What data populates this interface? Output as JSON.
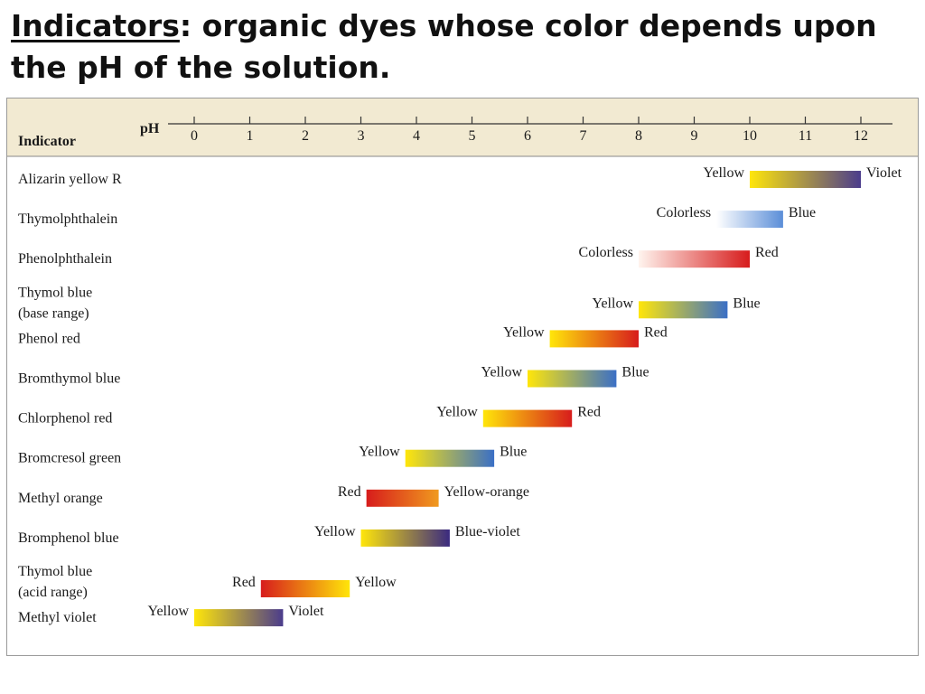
{
  "title": {
    "term": "Indicators",
    "rest": ": organic dyes whose color depends upon the pH of the solution."
  },
  "colors": {
    "header_background": "#f2ead2",
    "yellow": "#ffe60a",
    "violet": "#4b3c8c",
    "blue": "#3a6fc6",
    "red": "#d71c1c",
    "orange": "#f09a1e",
    "colorless": "#ffffff",
    "light_blue": "#5b8ed8"
  },
  "chart_data": {
    "type": "range",
    "title": "",
    "header_label": "Indicator",
    "axis_label": "pH",
    "xlim": [
      0,
      12
    ],
    "ticks": [
      0,
      1,
      2,
      3,
      4,
      5,
      6,
      7,
      8,
      9,
      10,
      11,
      12
    ],
    "indicators": [
      {
        "name": [
          "Alizarin yellow R"
        ],
        "low": 10.0,
        "high": 12.0,
        "low_color_label": "Yellow",
        "high_color_label": "Violet",
        "low_color": "#ffe60a",
        "high_color": "#4b3c8c"
      },
      {
        "name": [
          "Thymolphthalein"
        ],
        "low": 9.4,
        "high": 10.6,
        "low_color_label": "Colorless",
        "high_color_label": "Blue",
        "low_color": "#ffffff",
        "high_color": "#5b8ed8"
      },
      {
        "name": [
          "Phenolphthalein"
        ],
        "low": 8.0,
        "high": 10.0,
        "low_color_label": "Colorless",
        "high_color_label": "Red",
        "low_color": "#fff4ee",
        "high_color": "#d71c1c"
      },
      {
        "name": [
          "Thymol blue",
          "(base range)"
        ],
        "low": 8.0,
        "high": 9.6,
        "low_color_label": "Yellow",
        "high_color_label": "Blue",
        "low_color": "#ffe60a",
        "high_color": "#3a6fc6"
      },
      {
        "name": [
          "Phenol red"
        ],
        "low": 6.4,
        "high": 8.0,
        "low_color_label": "Yellow",
        "high_color_label": "Red",
        "low_color": "#ffe60a",
        "high_color": "#d71c1c"
      },
      {
        "name": [
          "Bromthymol blue"
        ],
        "low": 6.0,
        "high": 7.6,
        "low_color_label": "Yellow",
        "high_color_label": "Blue",
        "low_color": "#ffe60a",
        "high_color": "#3a6fc6"
      },
      {
        "name": [
          "Chlorphenol red"
        ],
        "low": 5.2,
        "high": 6.8,
        "low_color_label": "Yellow",
        "high_color_label": "Red",
        "low_color": "#ffe60a",
        "high_color": "#d71c1c"
      },
      {
        "name": [
          "Bromcresol green"
        ],
        "low": 3.8,
        "high": 5.4,
        "low_color_label": "Yellow",
        "high_color_label": "Blue",
        "low_color": "#ffe60a",
        "high_color": "#3a6fc6"
      },
      {
        "name": [
          "Methyl orange"
        ],
        "low": 3.1,
        "high": 4.4,
        "low_color_label": "Red",
        "high_color_label": "Yellow-orange",
        "low_color": "#d71c1c",
        "high_color": "#f09a1e"
      },
      {
        "name": [
          "Bromphenol blue"
        ],
        "low": 3.0,
        "high": 4.6,
        "low_color_label": "Yellow",
        "high_color_label": "Blue-violet",
        "low_color": "#ffe60a",
        "high_color": "#3a2a80"
      },
      {
        "name": [
          "Thymol blue",
          "(acid range)"
        ],
        "low": 1.2,
        "high": 2.8,
        "low_color_label": "Red",
        "high_color_label": "Yellow",
        "low_color": "#d71c1c",
        "high_color": "#ffe60a"
      },
      {
        "name": [
          "Methyl violet"
        ],
        "low": 0.0,
        "high": 1.6,
        "low_color_label": "Yellow",
        "high_color_label": "Violet",
        "low_color": "#ffe60a",
        "high_color": "#4b3c8c"
      }
    ]
  }
}
